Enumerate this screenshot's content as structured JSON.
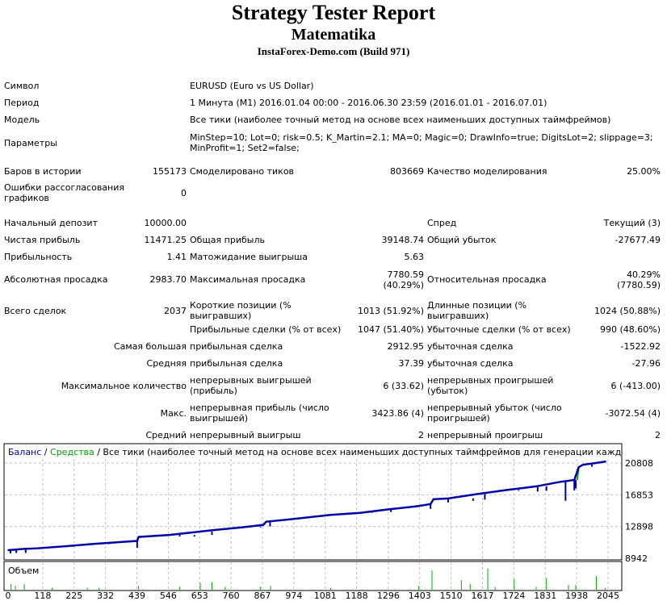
{
  "header": {
    "title": "Strategy Tester Report",
    "expert": "Matematika",
    "server": "InstaForex-Demo.com (Build 971)"
  },
  "info": {
    "symbol_label": "Символ",
    "symbol": "EURUSD (Euro vs US Dollar)",
    "period_label": "Период",
    "period": "1 Минута (M1) 2016.01.04 00:00 - 2016.06.30 23:59 (2016.01.01 - 2016.07.01)",
    "model_label": "Модель",
    "model": "Все тики (наиболее точный метод на основе всех наименьших доступных таймфреймов)",
    "params_label": "Параметры",
    "params": "MinStep=10; Lot=0; risk=0.5; K_Martin=2.1; MA=0; Magic=0; DrawInfo=true; DigitsLot=2; slippage=3; MinProfit=1; Set2=false;"
  },
  "stats": {
    "bars_label": "Баров в истории",
    "bars": "155173",
    "ticks_label": "Смоделировано тиков",
    "ticks": "803669",
    "quality_label": "Качество моделирования",
    "quality": "25.00%",
    "mismatch_label": "Ошибки рассогласования графиков",
    "mismatch": "0",
    "deposit_label": "Начальный депозит",
    "deposit": "10000.00",
    "spread_label": "Спред",
    "spread": "Текущий (3)",
    "net_label": "Чистая прибыль",
    "net": "11471.25",
    "gross_profit_label": "Общая прибыль",
    "gross_profit": "39148.74",
    "gross_loss_label": "Общий убыток",
    "gross_loss": "-27677.49",
    "pf_label": "Прибыльность",
    "pf": "1.41",
    "expected_label": "Матожидание выигрыша",
    "expected": "5.63",
    "abs_dd_label": "Абсолютная просадка",
    "abs_dd": "2983.70",
    "max_dd_label": "Максимальная просадка",
    "max_dd": "7780.59 (40.29%)",
    "rel_dd_label": "Относительная просадка",
    "rel_dd": "40.29% (7780.59)",
    "total_label": "Всего сделок",
    "total": "2037",
    "short_label": "Короткие позиции (% выигравших)",
    "short": "1013 (51.92%)",
    "long_label": "Длинные позиции (% выигравших)",
    "long": "1024 (50.88%)",
    "profit_trades_label": "Прибыльные сделки (% от всех)",
    "profit_trades": "1047 (51.40%)",
    "loss_trades_label": "Убыточные сделки (% от всех)",
    "loss_trades": "990 (48.60%)",
    "largest_label": "Самая большая",
    "largest_profit_label": "прибыльная сделка",
    "largest_profit": "2912.95",
    "largest_loss_label": "убыточная сделка",
    "largest_loss": "-1522.92",
    "average_label": "Средняя",
    "avg_profit_label": "прибыльная сделка",
    "avg_profit": "37.39",
    "avg_loss_label": "убыточная сделка",
    "avg_loss": "-27.96",
    "maxcount_label": "Максимальное количество",
    "max_cons_wins_label": "непрерывных выигрышей (прибыль)",
    "max_cons_wins": "6 (33.62)",
    "max_cons_losses_label": "непрерывных проигрышей (убыток)",
    "max_cons_losses": "6 (-413.00)",
    "max_label": "Макс.",
    "max_cons_profit_label": "непрерывная прибыль (число выигрышей)",
    "max_cons_profit": "3423.86 (4)",
    "max_cons_loss_label": "непрерывный убыток (число проигрышей)",
    "max_cons_loss": "-3072.54 (4)",
    "avgcons_label": "Средний",
    "avg_cons_wins_label": "непрерывный выигрыш",
    "avg_cons_wins": "2",
    "avg_cons_losses_label": "непрерывный проигрыш",
    "avg_cons_losses": "2"
  },
  "chart_data": {
    "type": "line",
    "legend": {
      "balance": "Баланс",
      "sep1": " / ",
      "equity": "Средства",
      "rest": " / Все тики (наиболее точный метод на основе всех наименьших доступных таймфреймов для генерации каждого тика)"
    },
    "volume_label": "Объем",
    "colors": {
      "balance": "#0000a8",
      "equity": "#00b000",
      "volume": "#00b000",
      "grid": "#c0c0c0"
    },
    "ylim": [
      8942,
      21600
    ],
    "yticks": [
      "20808",
      "16853",
      "12898",
      "8942"
    ],
    "ytick_values": [
      20808,
      16853,
      12898,
      8942
    ],
    "xticks": [
      "0",
      "118",
      "225",
      "332",
      "439",
      "546",
      "653",
      "760",
      "867",
      "974",
      "1081",
      "1188",
      "1296",
      "1403",
      "1510",
      "1617",
      "1724",
      "1831",
      "1938",
      "2045"
    ],
    "xlim": [
      0,
      2045
    ],
    "balance": [
      [
        0,
        9950
      ],
      [
        50,
        10100
      ],
      [
        100,
        10180
      ],
      [
        200,
        10450
      ],
      [
        300,
        10750
      ],
      [
        400,
        11000
      ],
      [
        440,
        11100
      ],
      [
        445,
        11600
      ],
      [
        550,
        11850
      ],
      [
        650,
        12250
      ],
      [
        700,
        12450
      ],
      [
        800,
        12800
      ],
      [
        870,
        13100
      ],
      [
        880,
        13500
      ],
      [
        950,
        13750
      ],
      [
        1000,
        13950
      ],
      [
        1100,
        14350
      ],
      [
        1200,
        14600
      ],
      [
        1300,
        15050
      ],
      [
        1400,
        15450
      ],
      [
        1440,
        15700
      ],
      [
        1450,
        16300
      ],
      [
        1500,
        16400
      ],
      [
        1600,
        16950
      ],
      [
        1700,
        17450
      ],
      [
        1800,
        17900
      ],
      [
        1880,
        18450
      ],
      [
        1930,
        18700
      ],
      [
        1945,
        20300
      ],
      [
        1960,
        20600
      ],
      [
        2000,
        20800
      ],
      [
        2037,
        21000
      ]
    ],
    "equity_dips": [
      [
        8,
        9550
      ],
      [
        28,
        9600
      ],
      [
        60,
        9600
      ],
      [
        345,
        10700
      ],
      [
        440,
        10250
      ],
      [
        585,
        11650
      ],
      [
        635,
        11650
      ],
      [
        695,
        11850
      ],
      [
        860,
        12900
      ],
      [
        893,
        12900
      ],
      [
        1240,
        14850
      ],
      [
        1305,
        14700
      ],
      [
        1440,
        15100
      ],
      [
        1500,
        15900
      ],
      [
        1585,
        16100
      ],
      [
        1625,
        16250
      ],
      [
        1740,
        17350
      ],
      [
        1805,
        17250
      ],
      [
        1835,
        17350
      ],
      [
        1900,
        16100
      ],
      [
        1930,
        17400
      ],
      [
        1935,
        17650
      ],
      [
        1990,
        20350
      ]
    ],
    "volume": [
      [
        10,
        0.3
      ],
      [
        25,
        0.2
      ],
      [
        55,
        0.3
      ],
      [
        150,
        0.1
      ],
      [
        270,
        0.1
      ],
      [
        310,
        0.1
      ],
      [
        445,
        0.2
      ],
      [
        585,
        0.15
      ],
      [
        655,
        0.35
      ],
      [
        695,
        0.4
      ],
      [
        740,
        0.15
      ],
      [
        860,
        0.15
      ],
      [
        895,
        0.2
      ],
      [
        1100,
        0.1
      ],
      [
        1400,
        0.2
      ],
      [
        1445,
        1.0
      ],
      [
        1545,
        0.5
      ],
      [
        1575,
        0.3
      ],
      [
        1635,
        1.1
      ],
      [
        1660,
        0.15
      ],
      [
        1725,
        0.55
      ],
      [
        1800,
        0.15
      ],
      [
        1835,
        0.6
      ],
      [
        1910,
        0.25
      ],
      [
        1935,
        0.25
      ],
      [
        2005,
        0.7
      ],
      [
        2035,
        0.1
      ]
    ]
  }
}
